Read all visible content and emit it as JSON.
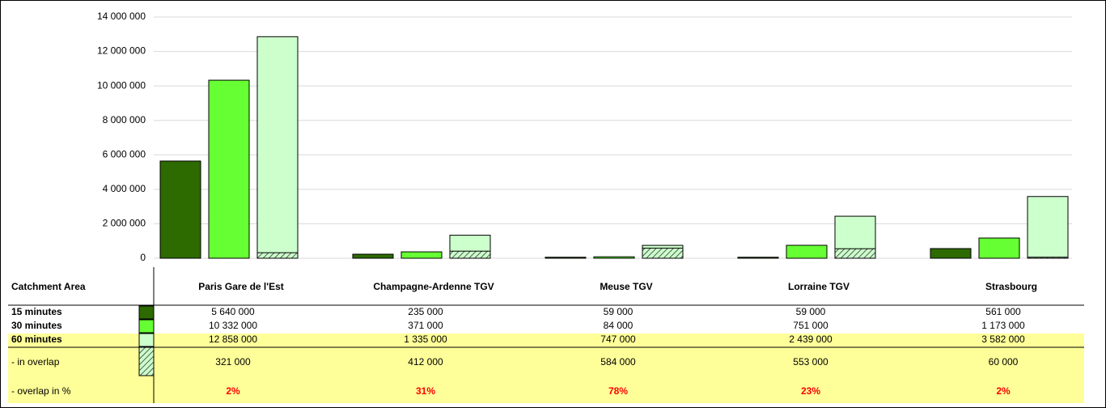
{
  "chart_data": {
    "type": "bar",
    "categories": [
      "Paris Gare de l'Est",
      "Champagne-Ardenne TGV",
      "Meuse TGV",
      "Lorraine TGV",
      "Strasbourg"
    ],
    "table_title": "Catchment Area",
    "series": [
      {
        "name": "15 minutes",
        "color": "#2d6a00",
        "values": [
          5640000,
          235000,
          59000,
          59000,
          561000
        ],
        "value_labels": [
          "5 640 000",
          "235 000",
          "59 000",
          "59 000",
          "561 000"
        ]
      },
      {
        "name": "30 minutes",
        "color": "#66ff33",
        "values": [
          10332000,
          371000,
          84000,
          751000,
          1173000
        ],
        "value_labels": [
          "10 332 000",
          "371 000",
          "84 000",
          "751 000",
          "1 173 000"
        ]
      },
      {
        "name": "60 minutes",
        "color": "#ccffcc",
        "values": [
          12858000,
          1335000,
          747000,
          2439000,
          3582000
        ],
        "value_labels": [
          "12 858 000",
          "1 335 000",
          "747 000",
          "2 439 000",
          "3 582 000"
        ]
      },
      {
        "name": "- in overlap",
        "color": "hatch",
        "values": [
          321000,
          412000,
          584000,
          553000,
          60000
        ],
        "value_labels": [
          "321 000",
          "412 000",
          "584 000",
          "553 000",
          "60 000"
        ]
      }
    ],
    "overlap_percent": {
      "name": "- overlap in %",
      "color": "#ff0000",
      "values": [
        2,
        31,
        78,
        23,
        2
      ],
      "value_labels": [
        "2%",
        "31%",
        "78%",
        "23%",
        "2%"
      ]
    },
    "ylim": [
      0,
      14000000
    ],
    "yticks": [
      0,
      {
        "value": 2000000,
        "label": "2 000 000"
      },
      {
        "value": 4000000,
        "label": "4 000 000"
      },
      {
        "value": 6000000,
        "label": "6 000 000"
      },
      {
        "value": 8000000,
        "label": "8 000 000"
      },
      {
        "value": 10000000,
        "label": "10 000 000"
      },
      {
        "value": 12000000,
        "label": "12 000 000"
      },
      {
        "value": 14000000,
        "label": "14 000 000"
      }
    ],
    "grid": true
  }
}
